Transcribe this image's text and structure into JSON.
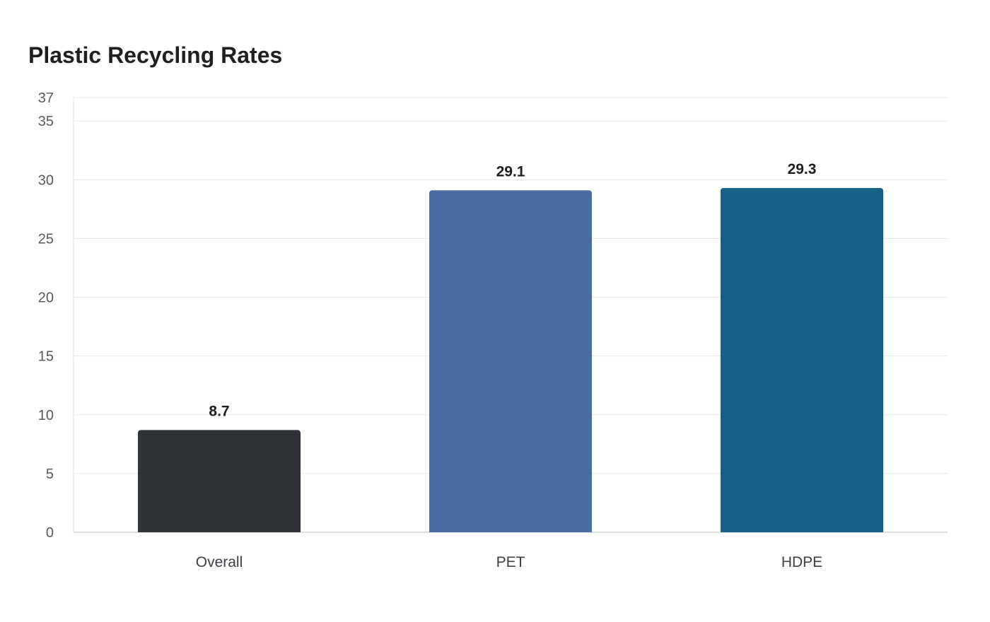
{
  "chart_data": {
    "type": "bar",
    "title": "Plastic Recycling Rates",
    "xlabel": "",
    "ylabel": "",
    "categories": [
      "Overall",
      "PET",
      "HDPE"
    ],
    "values": [
      8.7,
      29.1,
      29.3
    ],
    "value_labels": [
      "8.7",
      "29.1",
      "29.3"
    ],
    "colors": [
      "#2e3436",
      "#4a6da1",
      "#175f87"
    ],
    "ylim": [
      0,
      37
    ],
    "yticks": [
      0,
      5,
      10,
      15,
      20,
      25,
      30,
      35,
      37
    ],
    "grid": true,
    "legend": "none"
  }
}
